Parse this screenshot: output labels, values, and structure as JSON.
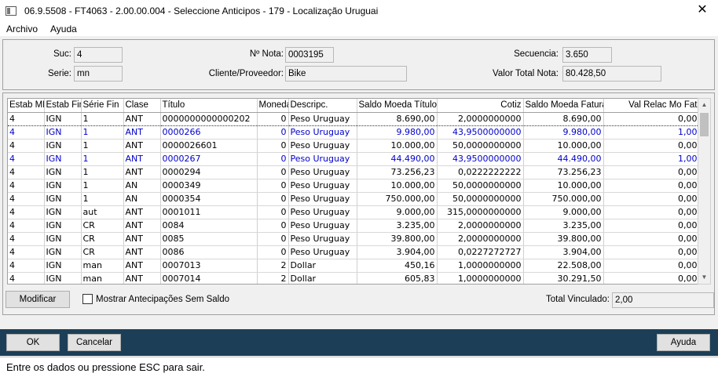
{
  "window": {
    "title": "06.9.5508 - FT4063 - 2.00.00.004 - Seleccione Anticipos - 179 - Localização Uruguai"
  },
  "menu": [
    "Archivo",
    "Ayuda"
  ],
  "header": {
    "suc_label": "Suc:",
    "suc_value": "4",
    "serie_label": "Serie:",
    "serie_value": "mn",
    "nota_label": "Nº Nota:",
    "nota_value": "0003195",
    "cliente_label": "Cliente/Proveedor:",
    "cliente_value": "Bike",
    "secuencia_label": "Secuencia:",
    "secuencia_value": "3.650",
    "valor_label": "Valor Total Nota:",
    "valor_value": "80.428,50"
  },
  "grid": {
    "columns": [
      "Estab MF",
      "Estab Fin",
      "Série Fin",
      "Clase",
      "Título",
      "Moneda",
      "Descripc.",
      "Saldo Moeda Título",
      "Cotiz",
      "Saldo Moeda Fatura",
      "Val Relac Mo Fat"
    ],
    "rows": [
      [
        "4",
        "IGN",
        "1",
        "ANT",
        "0000000000000202",
        "0",
        "Peso Uruguay",
        "8.690,00",
        "2,0000000000",
        "8.690,00",
        "0,00"
      ],
      [
        "4",
        "IGN",
        "1",
        "ANT",
        "0000266",
        "0",
        "Peso Uruguay",
        "9.980,00",
        "43,9500000000",
        "9.980,00",
        "1,00"
      ],
      [
        "4",
        "IGN",
        "1",
        "ANT",
        "0000026601",
        "0",
        "Peso Uruguay",
        "10.000,00",
        "50,0000000000",
        "10.000,00",
        "0,00"
      ],
      [
        "4",
        "IGN",
        "1",
        "ANT",
        "0000267",
        "0",
        "Peso Uruguay",
        "44.490,00",
        "43,9500000000",
        "44.490,00",
        "1,00"
      ],
      [
        "4",
        "IGN",
        "1",
        "ANT",
        "0000294",
        "0",
        "Peso Uruguay",
        "73.256,23",
        "0,0222222222",
        "73.256,23",
        "0,00"
      ],
      [
        "4",
        "IGN",
        "1",
        "AN",
        "0000349",
        "0",
        "Peso Uruguay",
        "10.000,00",
        "50,0000000000",
        "10.000,00",
        "0,00"
      ],
      [
        "4",
        "IGN",
        "1",
        "AN",
        "0000354",
        "0",
        "Peso Uruguay",
        "750.000,00",
        "50,0000000000",
        "750.000,00",
        "0,00"
      ],
      [
        "4",
        "IGN",
        "aut",
        "ANT",
        "0001011",
        "0",
        "Peso Uruguay",
        "9.000,00",
        "315,0000000000",
        "9.000,00",
        "0,00"
      ],
      [
        "4",
        "IGN",
        "CR",
        "ANT",
        "0084",
        "0",
        "Peso Uruguay",
        "3.235,00",
        "2,0000000000",
        "3.235,00",
        "0,00"
      ],
      [
        "4",
        "IGN",
        "CR",
        "ANT",
        "0085",
        "0",
        "Peso Uruguay",
        "39.800,00",
        "2,0000000000",
        "39.800,00",
        "0,00"
      ],
      [
        "4",
        "IGN",
        "CR",
        "ANT",
        "0086",
        "0",
        "Peso Uruguay",
        "3.904,00",
        "0,0227272727",
        "3.904,00",
        "0,00"
      ],
      [
        "4",
        "IGN",
        "man",
        "ANT",
        "0007013",
        "2",
        "Dollar",
        "450,16",
        "1,0000000000",
        "22.508,00",
        "0,00"
      ],
      [
        "4",
        "IGN",
        "man",
        "ANT",
        "0007014",
        "2",
        "Dollar",
        "605,83",
        "1,0000000000",
        "30.291,50",
        "0,00"
      ]
    ],
    "blue_rows": [
      1,
      3
    ],
    "selected_row": 0
  },
  "actions": {
    "modificar": "Modificar",
    "mostrar_label": "Mostrar Antecipações Sem Saldo",
    "total_label": "Total Vinculado:",
    "total_value": "2,00"
  },
  "footer": {
    "ok": "OK",
    "cancel": "Cancelar",
    "help": "Ayuda"
  },
  "status": {
    "text": "Entre os dados ou pressione ESC para sair."
  }
}
